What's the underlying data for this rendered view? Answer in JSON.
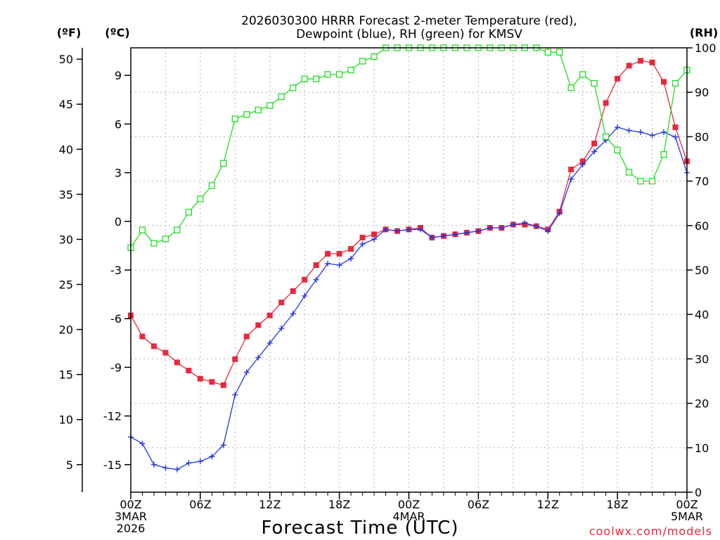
{
  "chart_data": {
    "type": "line",
    "title": [
      "2026030300 HRRR Forecast 2-meter Temperature (red),",
      "Dewpoint (blue), RH (green) for KMSV"
    ],
    "xlabel": "Forecast Time (UTC)",
    "credit": "coolwx.com/models",
    "units": {
      "fahrenheit": "(ºF)",
      "celsius": "(ºC)",
      "rh": "(RH)"
    },
    "x_range_hours": [
      0,
      48
    ],
    "celsius_range": [
      -16.7,
      10.7
    ],
    "rh_range": [
      0,
      100
    ],
    "x_ticks": [
      {
        "h": 0,
        "lines": [
          "00Z",
          "3MAR",
          "2026"
        ]
      },
      {
        "h": 6,
        "lines": [
          "06Z"
        ]
      },
      {
        "h": 12,
        "lines": [
          "12Z"
        ]
      },
      {
        "h": 18,
        "lines": [
          "18Z"
        ]
      },
      {
        "h": 24,
        "lines": [
          "00Z",
          "4MAR"
        ]
      },
      {
        "h": 30,
        "lines": [
          "06Z"
        ]
      },
      {
        "h": 36,
        "lines": [
          "12Z"
        ]
      },
      {
        "h": 42,
        "lines": [
          "18Z"
        ]
      },
      {
        "h": 48,
        "lines": [
          "00Z",
          "5MAR"
        ]
      }
    ],
    "celsius_ticks": [
      "-15",
      "-12",
      "-9",
      "-6",
      "-3",
      "0",
      "3",
      "6",
      "9"
    ],
    "fahrenheit_ticks": [
      "5",
      "10",
      "15",
      "20",
      "25",
      "30",
      "35",
      "40",
      "45",
      "50"
    ],
    "rh_ticks": [
      "0",
      "10",
      "20",
      "30",
      "40",
      "50",
      "60",
      "70",
      "80",
      "90",
      "100"
    ],
    "series": [
      {
        "name": "Temperature",
        "unit": "C",
        "color": "#e8283c",
        "marker": "filled-square",
        "values": [
          -5.8,
          -7.1,
          -7.7,
          -8.1,
          -8.7,
          -9.2,
          -9.7,
          -9.9,
          -10.1,
          -8.5,
          -7.1,
          -6.4,
          -5.8,
          -5.0,
          -4.3,
          -3.6,
          -2.7,
          -2.0,
          -2.0,
          -1.7,
          -1.0,
          -0.8,
          -0.5,
          -0.6,
          -0.5,
          -0.4,
          -1.0,
          -0.9,
          -0.8,
          -0.7,
          -0.6,
          -0.4,
          -0.4,
          -0.2,
          -0.2,
          -0.3,
          -0.5,
          0.6,
          3.2,
          3.7,
          4.8,
          7.3,
          8.8,
          9.6,
          9.9,
          9.8,
          8.6,
          5.8,
          3.7
        ]
      },
      {
        "name": "Dewpoint",
        "unit": "C",
        "color": "#2436e0",
        "marker": "plus",
        "values": [
          -13.3,
          -13.7,
          -15.0,
          -15.2,
          -15.3,
          -14.9,
          -14.8,
          -14.5,
          -13.8,
          -10.7,
          -9.3,
          -8.4,
          -7.5,
          -6.6,
          -5.7,
          -4.6,
          -3.6,
          -2.6,
          -2.7,
          -2.3,
          -1.4,
          -1.1,
          -0.5,
          -0.6,
          -0.5,
          -0.5,
          -1.0,
          -0.9,
          -0.8,
          -0.7,
          -0.6,
          -0.4,
          -0.4,
          -0.2,
          -0.1,
          -0.3,
          -0.6,
          0.5,
          2.6,
          3.5,
          4.3,
          5.0,
          5.8,
          5.6,
          5.5,
          5.3,
          5.5,
          5.2,
          3.0
        ]
      },
      {
        "name": "RH",
        "unit": "%",
        "color": "#22dd22",
        "marker": "open-square",
        "values": [
          55,
          59,
          56,
          57,
          59,
          63,
          66,
          69,
          74,
          84,
          85,
          86,
          87,
          89,
          91,
          93,
          93,
          94,
          94,
          95,
          97,
          98,
          100,
          100,
          100,
          100,
          100,
          100,
          100,
          100,
          100,
          100,
          100,
          100,
          100,
          100,
          99,
          99,
          91,
          94,
          92,
          80,
          77,
          72,
          70,
          70,
          76,
          92,
          95
        ]
      }
    ]
  }
}
